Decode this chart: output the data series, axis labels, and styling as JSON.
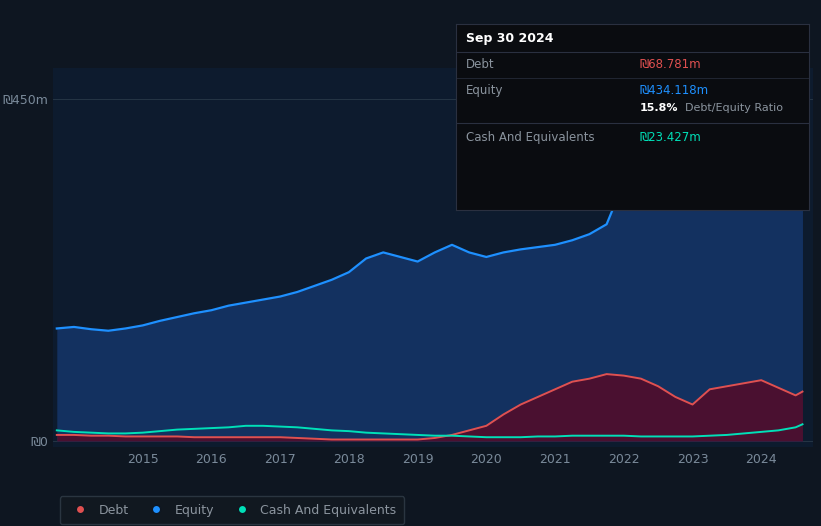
{
  "bg_color": "#0e1621",
  "plot_bg_color": "#0d1b2e",
  "grid_color": "#1e2d3d",
  "title_text": "Sep 30 2024",
  "tooltip_debt_label": "Debt",
  "tooltip_debt_value": "₪68.781m",
  "tooltip_equity_label": "Equity",
  "tooltip_equity_value": "₪434.118m",
  "tooltip_ratio_bold": "15.8%",
  "tooltip_ratio_text": " Debt/Equity Ratio",
  "tooltip_cash_label": "Cash And Equivalents",
  "tooltip_cash_value": "₪23.427m",
  "ylabel_450": "₪450m",
  "ylabel_0": "₪0",
  "equity_color": "#1e90ff",
  "debt_color": "#e05050",
  "cash_color": "#00e0b8",
  "equity_fill": "#133160",
  "debt_fill": "#4a1030",
  "cash_fill": "#0a2a28",
  "legend_bg": "#111820",
  "legend_border": "#2a3540",
  "years": [
    2013.75,
    2014.0,
    2014.25,
    2014.5,
    2014.75,
    2015.0,
    2015.25,
    2015.5,
    2015.75,
    2016.0,
    2016.25,
    2016.5,
    2016.75,
    2017.0,
    2017.25,
    2017.5,
    2017.75,
    2018.0,
    2018.25,
    2018.5,
    2018.75,
    2019.0,
    2019.25,
    2019.5,
    2019.75,
    2020.0,
    2020.25,
    2020.5,
    2020.75,
    2021.0,
    2021.25,
    2021.5,
    2021.75,
    2022.0,
    2022.25,
    2022.5,
    2022.75,
    2023.0,
    2023.25,
    2023.5,
    2023.75,
    2024.0,
    2024.25,
    2024.5,
    2024.6
  ],
  "equity": [
    148,
    150,
    147,
    145,
    148,
    152,
    158,
    163,
    168,
    172,
    178,
    182,
    186,
    190,
    196,
    204,
    212,
    222,
    240,
    248,
    242,
    236,
    248,
    258,
    248,
    242,
    248,
    252,
    255,
    258,
    264,
    272,
    285,
    340,
    360,
    342,
    312,
    308,
    345,
    385,
    415,
    424,
    438,
    448,
    462
  ],
  "debt": [
    8,
    8,
    7,
    7,
    6,
    6,
    6,
    6,
    5,
    5,
    5,
    5,
    5,
    5,
    4,
    3,
    2,
    2,
    2,
    2,
    2,
    2,
    4,
    8,
    14,
    20,
    35,
    48,
    58,
    68,
    78,
    82,
    88,
    86,
    82,
    72,
    58,
    48,
    68,
    72,
    76,
    80,
    70,
    60,
    65
  ],
  "cash": [
    14,
    12,
    11,
    10,
    10,
    11,
    13,
    15,
    16,
    17,
    18,
    20,
    20,
    19,
    18,
    16,
    14,
    13,
    11,
    10,
    9,
    8,
    7,
    7,
    6,
    5,
    5,
    5,
    6,
    6,
    7,
    7,
    7,
    7,
    6,
    6,
    6,
    6,
    7,
    8,
    10,
    12,
    14,
    18,
    22
  ],
  "xtick_labels": [
    "2015",
    "2016",
    "2017",
    "2018",
    "2019",
    "2020",
    "2021",
    "2022",
    "2023",
    "2024"
  ],
  "xtick_positions": [
    2015,
    2016,
    2017,
    2018,
    2019,
    2020,
    2021,
    2022,
    2023,
    2024
  ],
  "ylim_min": -8,
  "ylim_max": 490,
  "xmin": 2013.7,
  "xmax": 2024.75,
  "figsize": [
    8.21,
    5.26
  ],
  "dpi": 100
}
